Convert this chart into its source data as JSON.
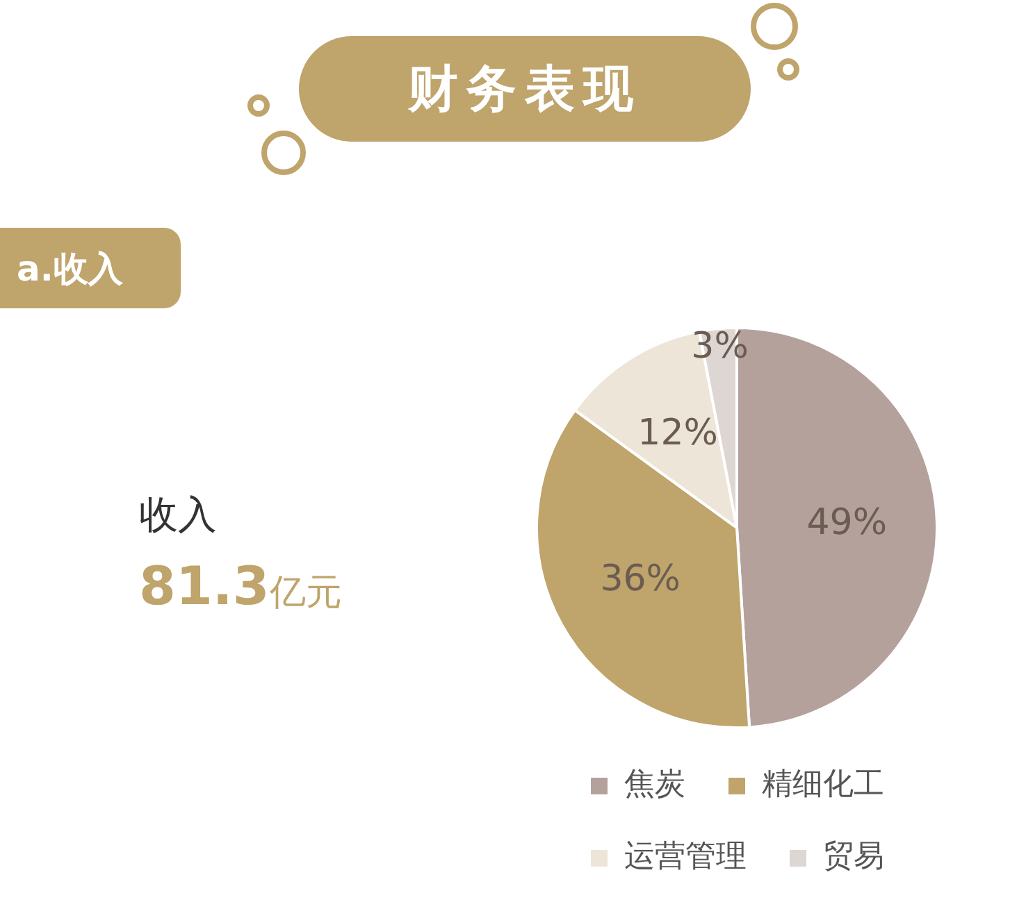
{
  "chart_data": {
    "type": "pie",
    "title": "财务表现",
    "subtitle": "a.收入",
    "categories": [
      "焦炭",
      "精细化工",
      "运营管理",
      "贸易"
    ],
    "values": [
      49,
      36,
      12,
      3
    ],
    "value_labels": [
      "49%",
      "36%",
      "12%",
      "3%"
    ],
    "colors": [
      "#b5a19b",
      "#bfa46b",
      "#ede5d8",
      "#ddd6d3"
    ],
    "annotations": [
      "收入",
      "81.3亿元"
    ],
    "legend": "bottom"
  }
}
